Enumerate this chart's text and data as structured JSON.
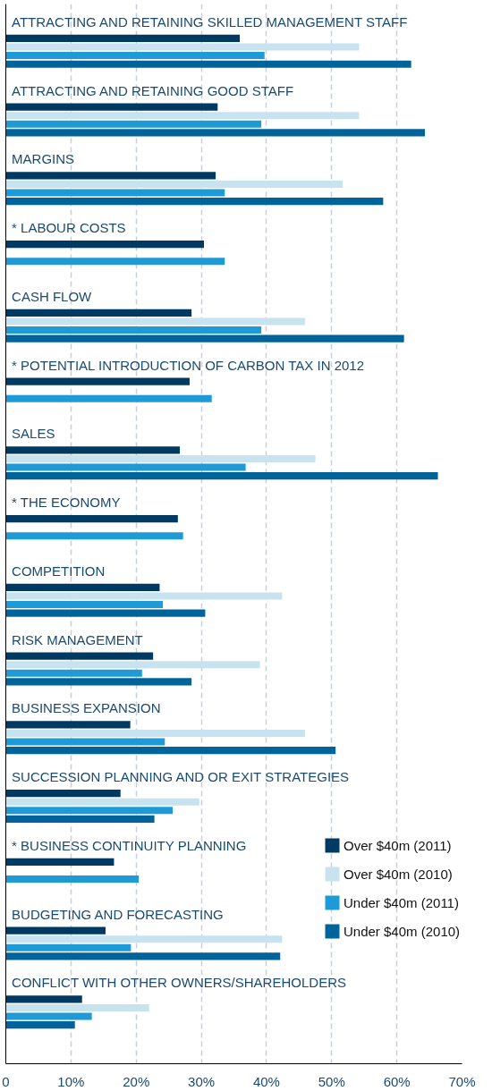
{
  "chart_data": {
    "type": "bar",
    "orientation": "horizontal",
    "categories": [
      "ATTRACTING AND RETAINING SKILLED MANAGEMENT STAFF",
      "ATTRACTING AND RETAINING GOOD STAFF",
      "MARGINS",
      "* LABOUR COSTS",
      "CASH FLOW",
      "* POTENTIAL INTRODUCTION OF CARBON TAX IN 2012",
      "SALES",
      "* THE ECONOMY",
      "COMPETITION",
      "RISK MANAGEMENT",
      "BUSINESS EXPANSION",
      "SUCCESSION PLANNING AND OR EXIT STRATEGIES",
      "* BUSINESS CONTINUITY PLANNING",
      "BUDGETING AND FORECASTING",
      "CONFLICT WITH OTHER OWNERS/SHAREHOLDERS"
    ],
    "series": [
      {
        "name": "Over $40m (2011)",
        "color": "#003a63",
        "values": [
          35.9,
          32.5,
          32.2,
          30.4,
          28.5,
          28.2,
          26.7,
          26.4,
          23.6,
          22.6,
          19.1,
          17.6,
          16.6,
          15.3,
          11.7
        ]
      },
      {
        "name": "Over $40m (2010)",
        "color": "#c8e3f0",
        "values": [
          54.2,
          54.2,
          51.7,
          null,
          45.9,
          null,
          47.5,
          null,
          42.4,
          39.0,
          45.9,
          29.7,
          null,
          42.4,
          22.0
        ]
      },
      {
        "name": "Under $40m (2011)",
        "color": "#1e9ad6",
        "values": [
          39.7,
          39.2,
          33.6,
          33.6,
          39.2,
          31.6,
          36.8,
          27.2,
          24.1,
          20.9,
          24.4,
          25.6,
          20.4,
          19.2,
          13.2
        ]
      },
      {
        "name": "Under $40m (2010)",
        "color": "#00649b",
        "values": [
          62.2,
          64.3,
          57.9,
          null,
          61.1,
          null,
          66.3,
          null,
          30.6,
          28.5,
          50.6,
          22.8,
          null,
          42.1,
          10.6
        ]
      }
    ],
    "xlim": [
      0,
      70
    ],
    "xticks": [
      0,
      {
        "value": 10,
        "label": "10%"
      },
      {
        "value": 20,
        "label": "20%"
      },
      {
        "value": 30,
        "label": "30%"
      },
      {
        "value": 40,
        "label": "40%"
      },
      {
        "value": 50,
        "label": "50%"
      },
      {
        "value": 60,
        "label": "60%"
      },
      {
        "value": 70,
        "label": "70%"
      }
    ],
    "grid": "x",
    "legend": "bottom right",
    "tick_labels": "x"
  }
}
